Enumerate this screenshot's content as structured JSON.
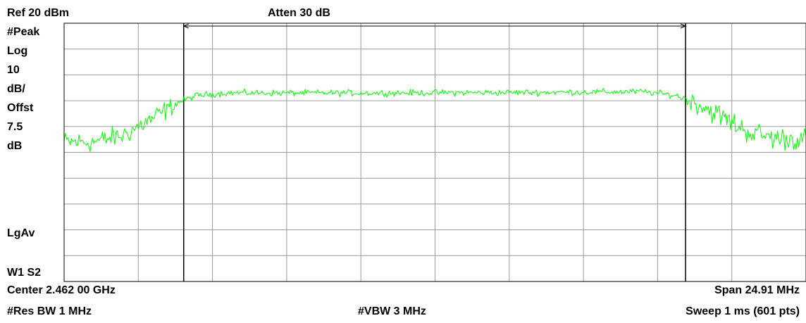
{
  "header": {
    "ref_level": "Ref 20 dBm",
    "attenuation": "Atten 30 dB"
  },
  "side_panel": {
    "detector": "#Peak",
    "scale_type": "Log",
    "scale_value": "10",
    "scale_unit": "dB/",
    "offset_label": "Offst",
    "offset_value": "7.5",
    "offset_unit": "dB",
    "averaging": "LgAv",
    "trace_state": "W1  S2"
  },
  "footer": {
    "center": "Center 2.462 00 GHz",
    "span": "Span 24.91 MHz",
    "res_bw": "#Res BW 1 MHz",
    "vbw": "#VBW 3 MHz",
    "sweep": "Sweep 1 ms (601 pts)"
  },
  "colors": {
    "trace": "#00ff00",
    "grid": "#9a9a9a",
    "frame": "#000000",
    "background": "#ffffff"
  },
  "chart_data": {
    "type": "line",
    "xlim": [
      2449.545,
      2474.455
    ],
    "x_unit": "MHz",
    "ylim": [
      -80,
      20
    ],
    "y_unit": "dBm",
    "y_scale_per_div": 10,
    "grid": true,
    "x_divisions": 10,
    "y_divisions": 10,
    "points": 601,
    "markers": [
      {
        "x": 2453.56
      },
      {
        "x": 2470.41
      }
    ],
    "bandwidth_bracket": [
      2453.56,
      2470.41
    ],
    "series": [
      {
        "profile": [
          [
            2449.545,
            -26.0
          ],
          [
            2450.5,
            -26.0
          ],
          [
            2451.5,
            -23.5
          ],
          [
            2452.5,
            -17.0
          ],
          [
            2453.4,
            -10.5
          ],
          [
            2454.0,
            -8.0
          ],
          [
            2455.0,
            -7.0
          ],
          [
            2460.0,
            -7.0
          ],
          [
            2465.0,
            -6.8
          ],
          [
            2469.0,
            -6.5
          ],
          [
            2470.1,
            -8.0
          ],
          [
            2470.8,
            -11.0
          ],
          [
            2471.6,
            -16.0
          ],
          [
            2472.5,
            -22.0
          ],
          [
            2473.4,
            -24.5
          ],
          [
            2474.455,
            -25.0
          ]
        ],
        "ripple": [
          [
            2449.545,
            6.0
          ],
          [
            2453.0,
            6.0
          ],
          [
            2453.6,
            1.8
          ],
          [
            2470.2,
            1.8
          ],
          [
            2470.8,
            6.5
          ],
          [
            2474.455,
            6.5
          ]
        ]
      }
    ]
  }
}
